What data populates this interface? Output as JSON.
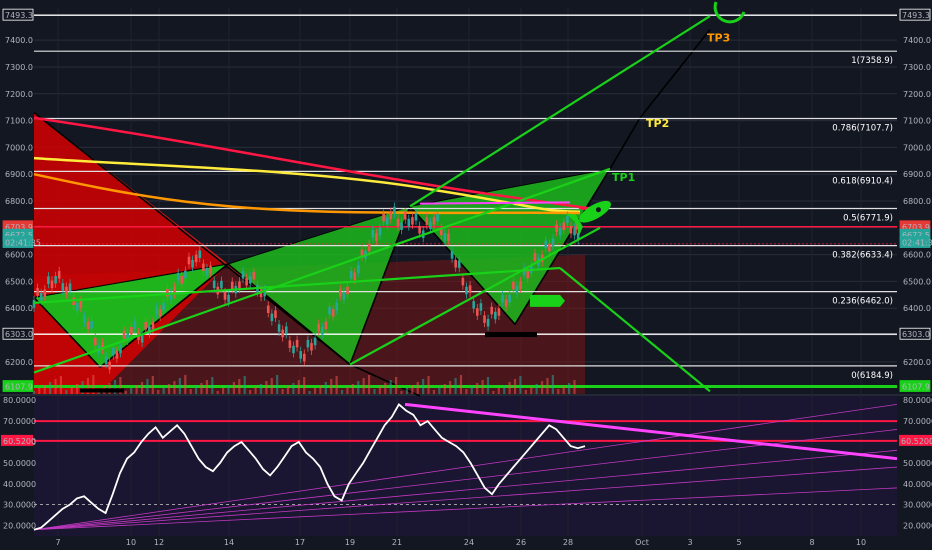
{
  "chart_data": [
    {
      "type": "candlestick",
      "panel": "price",
      "symbol_overlay": "BTC/USD intraday",
      "ylim": [
        6080,
        7520
      ],
      "y_ticks": [
        6200,
        6300,
        6400,
        6500,
        6600,
        6700,
        6800,
        6900,
        7000,
        7100,
        7200,
        7300,
        7400
      ],
      "y_tick_labels": [
        "6200.0",
        "6300.0",
        "6400.0",
        "6500.0",
        "6600.0",
        "6700.0",
        "6800.0",
        "6900.0",
        "7000.0",
        "7100.0",
        "7200.0",
        "7300.0",
        "7400.0"
      ],
      "x_tick_labels": [
        "7",
        "10",
        "12",
        "14",
        "17",
        "19",
        "21",
        "24",
        "26",
        "28",
        "Oct",
        "3",
        "5",
        "8",
        "10"
      ],
      "price_badges_left": [
        {
          "text": "7493.3",
          "value": 7493.3,
          "color": "#ffffff"
        },
        {
          "text": "6703.9",
          "value": 6703.9,
          "color": "#e53935"
        },
        {
          "text": "6672.5",
          "value": 6672.5,
          "color": "#26a69a"
        },
        {
          "text": "02:41:35",
          "value": 6645,
          "color": "#26a69a"
        },
        {
          "text": "6303.0",
          "value": 6303.0,
          "color": "#ffffff"
        },
        {
          "text": "6107.9",
          "value": 6107.9,
          "color": "#19d119"
        }
      ],
      "price_badges_right": [
        {
          "text": "7493.3",
          "value": 7493.3,
          "color": "#ffffff"
        },
        {
          "text": "6703.9",
          "value": 6703.9,
          "color": "#e53935"
        },
        {
          "text": "6672.5",
          "value": 6672.5,
          "color": "#26a69a"
        },
        {
          "text": "02:41:35",
          "value": 6645,
          "color": "#26a69a"
        },
        {
          "text": "6303.0",
          "value": 6303.0,
          "color": "#ffffff"
        },
        {
          "text": "6107.9",
          "value": 6107.9,
          "color": "#19d119"
        }
      ],
      "fib_levels": [
        {
          "label": "1(7358.9)",
          "value": 7358.9
        },
        {
          "label": "0.786(7107.7)",
          "value": 7107.7
        },
        {
          "label": "0.618(6910.4)",
          "value": 6910.4
        },
        {
          "label": "0.5(6771.9)",
          "value": 6771.9
        },
        {
          "label": "0.382(6633.4)",
          "value": 6633.4
        },
        {
          "label": "0.236(6462.0)",
          "value": 6462.0
        },
        {
          "label": "0(6184.9)",
          "value": 6184.9
        }
      ],
      "targets": [
        {
          "label": "TP1",
          "value": 6920,
          "color": "#19d119"
        },
        {
          "label": "TP2",
          "value": 7120,
          "color": "#ffeb3b"
        },
        {
          "label": "TP3",
          "value": 7440,
          "color": "#ff9800"
        }
      ],
      "horizontal_lines": [
        {
          "value": 7493.3,
          "color": "#ffffff"
        },
        {
          "value": 6703.9,
          "color": "#ff1744"
        },
        {
          "value": 6303.0,
          "color": "#ffffff"
        },
        {
          "value": 6107.9,
          "color": "#19d119"
        }
      ],
      "price_path": [
        [
          0,
          6430
        ],
        [
          2,
          6470
        ],
        [
          4,
          6520
        ],
        [
          6,
          6480
        ],
        [
          8,
          6420
        ],
        [
          10,
          6350
        ],
        [
          12,
          6260
        ],
        [
          14,
          6200
        ],
        [
          16,
          6260
        ],
        [
          18,
          6330
        ],
        [
          20,
          6300
        ],
        [
          22,
          6350
        ],
        [
          24,
          6420
        ],
        [
          26,
          6480
        ],
        [
          28,
          6540
        ],
        [
          30,
          6600
        ],
        [
          32,
          6550
        ],
        [
          34,
          6480
        ],
        [
          36,
          6450
        ],
        [
          38,
          6500
        ],
        [
          40,
          6520
        ],
        [
          42,
          6470
        ],
        [
          44,
          6380
        ],
        [
          46,
          6320
        ],
        [
          48,
          6260
        ],
        [
          50,
          6230
        ],
        [
          52,
          6290
        ],
        [
          54,
          6350
        ],
        [
          56,
          6420
        ],
        [
          58,
          6480
        ],
        [
          60,
          6560
        ],
        [
          62,
          6640
        ],
        [
          64,
          6700
        ],
        [
          66,
          6760
        ],
        [
          68,
          6720
        ],
        [
          70,
          6740
        ],
        [
          72,
          6690
        ],
        [
          74,
          6740
        ],
        [
          76,
          6680
        ],
        [
          78,
          6580
        ],
        [
          80,
          6480
        ],
        [
          82,
          6400
        ],
        [
          84,
          6360
        ],
        [
          86,
          6400
        ],
        [
          88,
          6450
        ],
        [
          90,
          6500
        ],
        [
          92,
          6560
        ],
        [
          94,
          6600
        ],
        [
          96,
          6660
        ],
        [
          98,
          6720
        ],
        [
          100,
          6700
        ],
        [
          101,
          6672
        ]
      ]
    },
    {
      "type": "line",
      "panel": "oscillator",
      "ylim": [
        15,
        82
      ],
      "y_ticks": [
        20,
        30,
        40,
        50,
        60,
        70,
        80
      ],
      "y_tick_labels": [
        "20.0000",
        "30.0000",
        "40.0000",
        "50.0000",
        "60.0000",
        "70.0000",
        "80.0000"
      ],
      "badges": [
        {
          "text": "60.5200",
          "value": 60.52,
          "color": "#ff1744"
        }
      ],
      "horizontal_lines": [
        {
          "value": 70,
          "color": "#ff1744"
        },
        {
          "value": 60.52,
          "color": "#ff1744"
        },
        {
          "value": 30,
          "color": "#cccccc",
          "dashed": true
        }
      ],
      "series": [
        {
          "values": [
            18,
            19,
            22,
            25,
            28,
            30,
            33,
            34,
            31,
            28,
            26,
            35,
            45,
            52,
            55,
            60,
            64,
            67,
            62,
            65,
            68,
            64,
            58,
            52,
            48,
            46,
            50,
            55,
            58,
            60,
            56,
            52,
            47,
            44,
            48,
            53,
            58,
            60,
            55,
            52,
            48,
            40,
            34,
            32,
            40,
            45,
            50,
            56,
            62,
            68,
            72,
            78,
            75,
            73,
            68,
            70,
            66,
            62,
            60,
            58,
            55,
            50,
            44,
            38,
            35,
            40,
            44,
            48,
            52,
            56,
            60,
            64,
            68,
            66,
            62,
            58,
            57,
            58
          ]
        }
      ]
    }
  ]
}
